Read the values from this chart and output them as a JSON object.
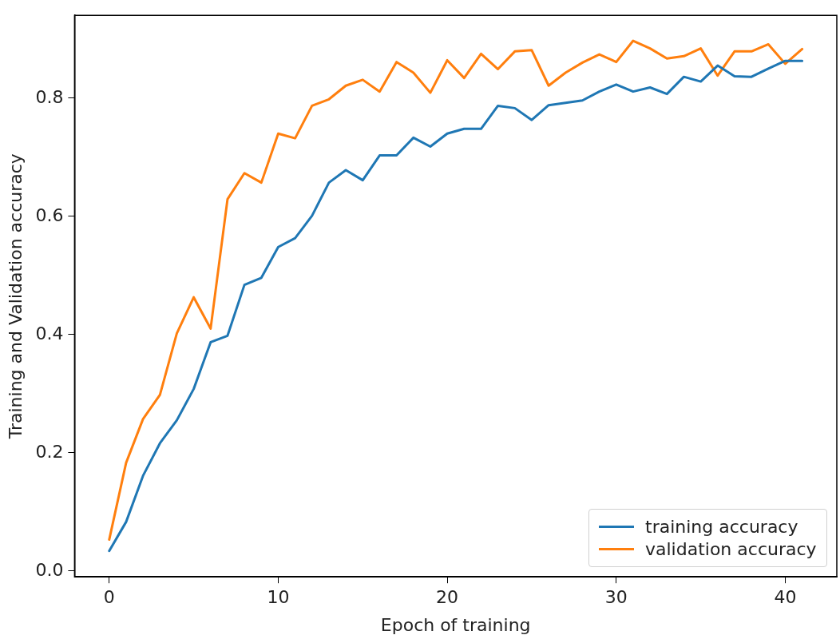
{
  "chart_data": {
    "type": "line",
    "xlabel": "Epoch of training",
    "ylabel": "Training and Validation accuracy",
    "x": [
      0,
      1,
      2,
      3,
      4,
      5,
      6,
      7,
      8,
      9,
      10,
      11,
      12,
      13,
      14,
      15,
      16,
      17,
      18,
      19,
      20,
      21,
      22,
      23,
      24,
      25,
      26,
      27,
      28,
      29,
      30,
      31,
      32,
      33,
      34,
      35,
      36,
      37,
      38,
      39,
      40,
      41
    ],
    "series": [
      {
        "name": "training accuracy",
        "color": "#1f77b4",
        "values": [
          0.034,
          0.083,
          0.161,
          0.216,
          0.255,
          0.308,
          0.387,
          0.398,
          0.484,
          0.496,
          0.548,
          0.563,
          0.601,
          0.657,
          0.678,
          0.661,
          0.703,
          0.703,
          0.733,
          0.718,
          0.74,
          0.748,
          0.748,
          0.787,
          0.783,
          0.763,
          0.788,
          0.792,
          0.796,
          0.811,
          0.823,
          0.811,
          0.818,
          0.807,
          0.836,
          0.828,
          0.855,
          0.837,
          0.836,
          0.85,
          0.863,
          0.863
        ]
      },
      {
        "name": "validation accuracy",
        "color": "#ff7f0e",
        "values": [
          0.053,
          0.183,
          0.257,
          0.298,
          0.402,
          0.463,
          0.41,
          0.629,
          0.673,
          0.657,
          0.74,
          0.732,
          0.787,
          0.798,
          0.821,
          0.831,
          0.811,
          0.861,
          0.843,
          0.809,
          0.864,
          0.834,
          0.875,
          0.849,
          0.879,
          0.881,
          0.821,
          0.843,
          0.86,
          0.874,
          0.861,
          0.897,
          0.884,
          0.867,
          0.871,
          0.884,
          0.838,
          0.879,
          0.879,
          0.891,
          0.858,
          0.883
        ]
      }
    ],
    "xlim": [
      -2.05,
      43.05
    ],
    "xticks": [
      0,
      10,
      20,
      30,
      40
    ],
    "ylim": [
      -0.01,
      0.94
    ],
    "yticks": [
      {
        "value": 0,
        "label": "0.0"
      },
      {
        "value": 0.2,
        "label": "0.2"
      },
      {
        "value": 0.4,
        "label": "0.4"
      },
      {
        "value": 0.6,
        "label": "0.6"
      },
      {
        "value": 0.8,
        "label": "0.8"
      }
    ],
    "legend": "bottom right",
    "marker": "none",
    "line_style": "solid"
  }
}
